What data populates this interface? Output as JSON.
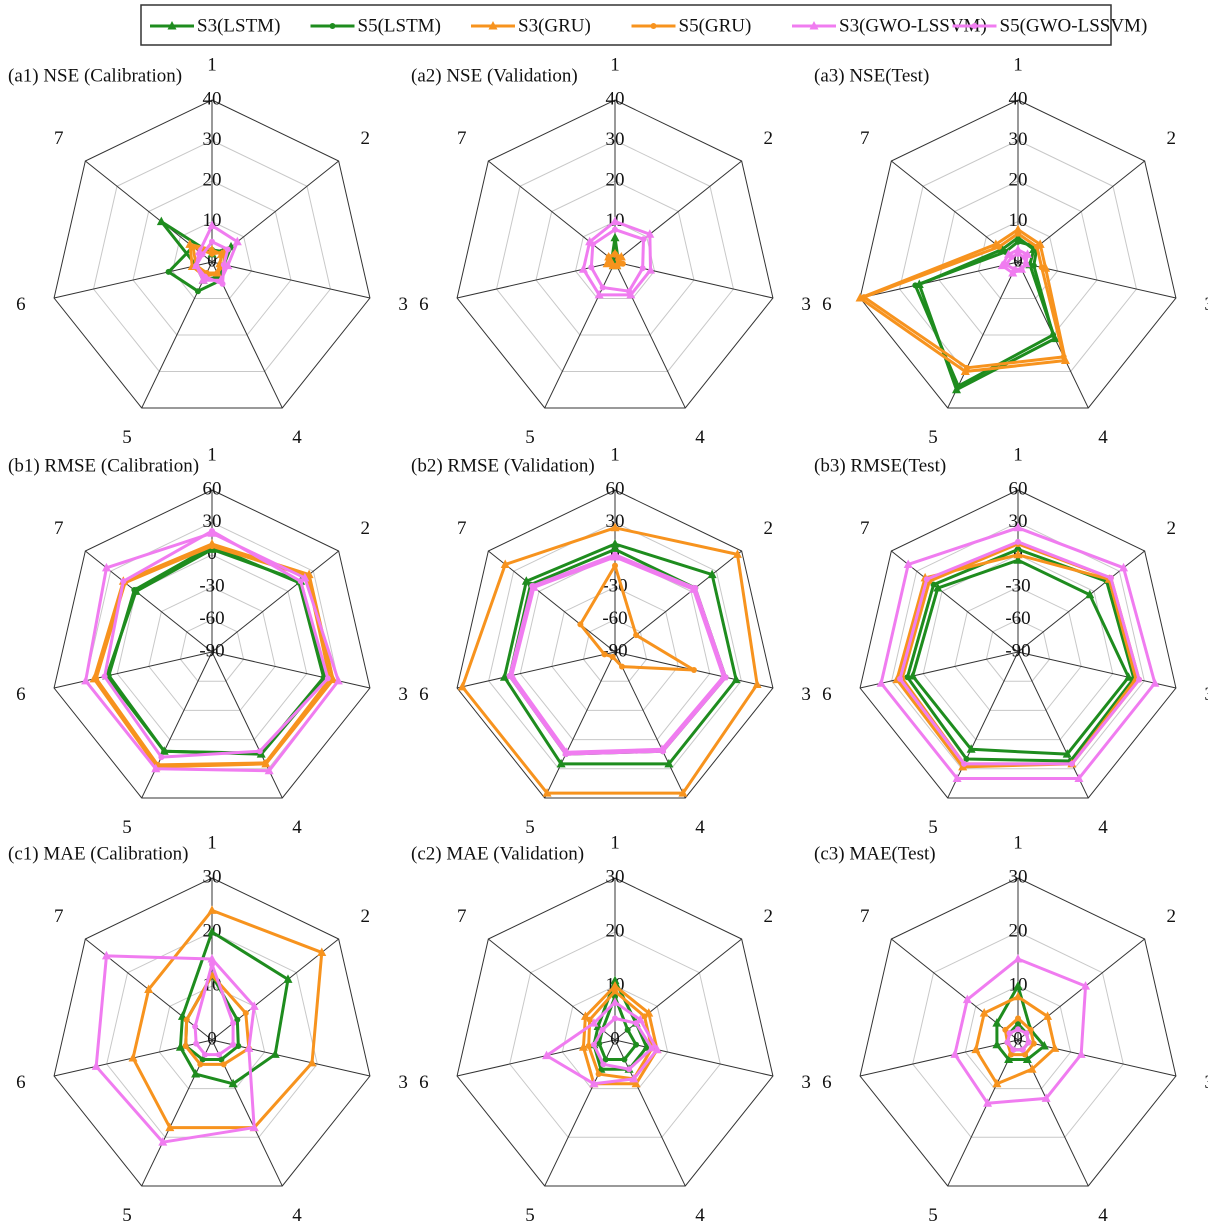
{
  "legend": [
    {
      "name": "S3(LSTM)",
      "color": "#1e8c1e",
      "marker": "triangle"
    },
    {
      "name": "S5(LSTM)",
      "color": "#1e8c1e",
      "marker": "circle"
    },
    {
      "name": "S3(GRU)",
      "color": "#f7931e",
      "marker": "triangle"
    },
    {
      "name": "S5(GRU)",
      "color": "#f7931e",
      "marker": "circle"
    },
    {
      "name": "S3(GWO-LSSVM)",
      "color": "#f07cf0",
      "marker": "triangle"
    },
    {
      "name": "S5(GWO-LSSVM)",
      "color": "#f07cf0",
      "marker": "circle"
    }
  ],
  "chart_data": [
    {
      "type": "radar",
      "title": "(a1) NSE (Calibration)",
      "categories": [
        "1",
        "2",
        "3",
        "4",
        "5",
        "6",
        "7"
      ],
      "rlim": [
        0,
        40
      ],
      "rticks": [
        0,
        10,
        20,
        30,
        40
      ],
      "series": [
        {
          "values": [
            2,
            6,
            3,
            4,
            5,
            4,
            16
          ]
        },
        {
          "values": [
            3,
            4,
            3,
            5,
            8,
            11,
            6
          ]
        },
        {
          "values": [
            3,
            3,
            2,
            3,
            4,
            5,
            7
          ]
        },
        {
          "values": [
            2,
            4,
            3,
            3,
            3,
            4,
            6
          ]
        },
        {
          "values": [
            9,
            8,
            4,
            5,
            5,
            4,
            4
          ]
        },
        {
          "values": [
            5,
            5,
            3,
            6,
            4,
            4,
            3
          ]
        }
      ]
    },
    {
      "type": "radar",
      "title": "(a2) NSE (Validation)",
      "categories": [
        "1",
        "2",
        "3",
        "4",
        "5",
        "6",
        "7"
      ],
      "rlim": [
        0,
        40
      ],
      "rticks": [
        0,
        10,
        20,
        30,
        40
      ],
      "series": [
        {
          "values": [
            6,
            1,
            1,
            1,
            1,
            1,
            1
          ]
        },
        {
          "values": [
            3,
            1,
            1,
            1,
            1,
            1,
            1
          ]
        },
        {
          "values": [
            2,
            2,
            1,
            1,
            1,
            2,
            2
          ]
        },
        {
          "values": [
            2,
            1,
            2,
            1,
            1,
            1,
            2
          ]
        },
        {
          "values": [
            10,
            11,
            9,
            9,
            9,
            8,
            8
          ]
        },
        {
          "values": [
            8,
            9,
            7,
            8,
            7,
            6,
            7
          ]
        }
      ]
    },
    {
      "type": "radar",
      "title": "(a3) NSE(Test)",
      "categories": [
        "1",
        "2",
        "3",
        "4",
        "5",
        "6",
        "7"
      ],
      "rlim": [
        0,
        40
      ],
      "rticks": [
        0,
        10,
        20,
        30,
        40
      ],
      "series": [
        {
          "values": [
            6,
            5,
            3,
            21,
            35,
            25,
            5
          ]
        },
        {
          "values": [
            5,
            6,
            4,
            20,
            34,
            26,
            4
          ]
        },
        {
          "values": [
            8,
            7,
            7,
            27,
            30,
            40,
            7
          ]
        },
        {
          "values": [
            7,
            6,
            6,
            26,
            29,
            39,
            6
          ]
        },
        {
          "values": [
            3,
            3,
            2,
            2,
            3,
            4,
            3
          ]
        },
        {
          "values": [
            2,
            2,
            2,
            2,
            2,
            3,
            2
          ]
        }
      ]
    },
    {
      "type": "radar",
      "title": "(b1) RMSE (Calibration)",
      "categories": [
        "1",
        "2",
        "3",
        "4",
        "5",
        "6",
        "7"
      ],
      "rlim": [
        -90,
        60
      ],
      "rticks": [
        -90,
        -60,
        -30,
        0,
        30,
        60
      ],
      "series": [
        {
          "values": [
            5,
            15,
            18,
            15,
            12,
            10,
            0
          ]
        },
        {
          "values": [
            8,
            13,
            16,
            14,
            12,
            8,
            2
          ]
        },
        {
          "values": [
            10,
            25,
            25,
            25,
            28,
            22,
            15
          ]
        },
        {
          "values": [
            8,
            23,
            22,
            24,
            26,
            20,
            13
          ]
        },
        {
          "values": [
            20,
            20,
            30,
            32,
            30,
            30,
            35
          ]
        },
        {
          "values": [
            22,
            15,
            20,
            12,
            18,
            12,
            15
          ]
        }
      ]
    },
    {
      "type": "radar",
      "title": "(b2) RMSE (Validation)",
      "categories": [
        "1",
        "2",
        "3",
        "4",
        "5",
        "6",
        "7"
      ],
      "rlim": [
        -90,
        60
      ],
      "rticks": [
        -90,
        -60,
        -30,
        0,
        30,
        60
      ],
      "series": [
        {
          "values": [
            10,
            25,
            25,
            25,
            25,
            15,
            15
          ]
        },
        {
          "values": [
            5,
            5,
            15,
            12,
            15,
            10,
            10
          ]
        },
        {
          "values": [
            25,
            55,
            45,
            55,
            55,
            55,
            40
          ]
        },
        {
          "values": [
            -10,
            -65,
            -15,
            -75,
            -85,
            -80,
            -49
          ]
        },
        {
          "values": [
            -2,
            3,
            13,
            10,
            13,
            8,
            6
          ]
        },
        {
          "values": [
            0,
            5,
            15,
            12,
            15,
            10,
            8
          ]
        }
      ]
    },
    {
      "type": "radar",
      "title": "(b3) RMSE(Test)",
      "categories": [
        "1",
        "2",
        "3",
        "4",
        "5",
        "6",
        "7"
      ],
      "rlim": [
        -90,
        60
      ],
      "rticks": [
        -90,
        -60,
        -30,
        0,
        30,
        60
      ],
      "series": [
        {
          "values": [
            -5,
            -5,
            15,
            15,
            10,
            10,
            5
          ]
        },
        {
          "values": [
            5,
            15,
            20,
            22,
            20,
            15,
            10
          ]
        },
        {
          "values": [
            0,
            18,
            22,
            25,
            28,
            25,
            20
          ]
        },
        {
          "values": [
            10,
            20,
            25,
            25,
            25,
            20,
            15
          ]
        },
        {
          "values": [
            25,
            35,
            40,
            40,
            40,
            40,
            40
          ]
        },
        {
          "values": [
            12,
            20,
            25,
            25,
            25,
            22,
            18
          ]
        }
      ]
    },
    {
      "type": "radar",
      "title": "(c1) MAE (Calibration)",
      "categories": [
        "1",
        "2",
        "3",
        "4",
        "5",
        "6",
        "7"
      ],
      "rlim": [
        0,
        30
      ],
      "rticks": [
        0,
        10,
        20,
        30
      ],
      "series": [
        {
          "values": [
            20,
            18,
            12,
            9,
            7,
            6,
            7
          ]
        },
        {
          "values": [
            12,
            6,
            5,
            4,
            4,
            5,
            6
          ]
        },
        {
          "values": [
            24,
            26,
            19,
            18,
            18,
            15,
            15
          ]
        },
        {
          "values": [
            12,
            8,
            7,
            5,
            5,
            5,
            6
          ]
        },
        {
          "values": [
            15,
            10,
            7,
            18,
            21,
            22,
            25
          ]
        },
        {
          "values": [
            14,
            5,
            4,
            3,
            3,
            3,
            4
          ]
        }
      ]
    },
    {
      "type": "radar",
      "title": "(c2) MAE (Validation)",
      "categories": [
        "1",
        "2",
        "3",
        "4",
        "5",
        "6",
        "7"
      ],
      "rlim": [
        0,
        30
      ],
      "rticks": [
        0,
        10,
        20,
        30
      ],
      "series": [
        {
          "values": [
            11,
            5,
            6,
            6,
            6,
            4,
            4
          ]
        },
        {
          "values": [
            8,
            3,
            4,
            4,
            4,
            3,
            3
          ]
        },
        {
          "values": [
            10,
            8,
            8,
            9,
            9,
            6,
            7
          ]
        },
        {
          "values": [
            9,
            7,
            7,
            8,
            7,
            5,
            6
          ]
        },
        {
          "values": [
            7,
            6,
            8,
            8,
            9,
            13,
            5
          ]
        },
        {
          "values": [
            4,
            5,
            7,
            6,
            5,
            4,
            3
          ]
        }
      ]
    },
    {
      "type": "radar",
      "title": "(c3) MAE(Test)",
      "categories": [
        "1",
        "2",
        "3",
        "4",
        "5",
        "6",
        "7"
      ],
      "rlim": [
        0,
        30
      ],
      "rticks": [
        0,
        10,
        20,
        30
      ],
      "series": [
        {
          "values": [
            10,
            3,
            5,
            4,
            4,
            4,
            5
          ]
        },
        {
          "values": [
            3,
            2,
            2,
            2,
            2,
            2,
            2
          ]
        },
        {
          "values": [
            8,
            7,
            7,
            6,
            9,
            8,
            8
          ]
        },
        {
          "values": [
            4,
            3,
            3,
            3,
            3,
            2,
            3
          ]
        },
        {
          "values": [
            15,
            16,
            12,
            12,
            13,
            12,
            12
          ]
        },
        {
          "values": [
            2,
            2,
            2,
            2,
            2,
            2,
            2
          ]
        }
      ]
    }
  ]
}
